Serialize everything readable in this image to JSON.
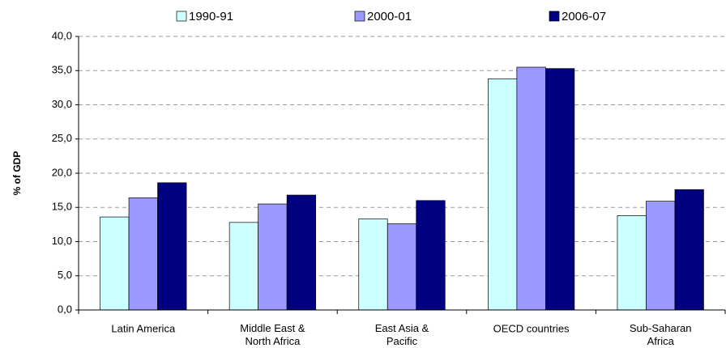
{
  "chart_data": {
    "type": "bar",
    "y_label": "% of GDP",
    "categories": [
      "Latin America",
      "Middle East & North Africa",
      "East Asia & Pacific",
      "OECD countries",
      "Sub-Saharan Africa"
    ],
    "series": [
      {
        "name": "1990-91",
        "color": "#ccffff",
        "values": [
          13.6,
          12.8,
          13.3,
          33.8,
          13.8
        ]
      },
      {
        "name": "2000-01",
        "color": "#9999ff",
        "values": [
          16.4,
          15.5,
          12.6,
          35.5,
          15.9
        ]
      },
      {
        "name": "2006-07",
        "color": "#000080",
        "values": [
          18.6,
          16.8,
          16.0,
          35.3,
          17.6
        ]
      }
    ],
    "ylim": [
      0,
      40
    ],
    "yticks": [
      {
        "value": 0,
        "label": "0,0"
      },
      {
        "value": 5,
        "label": "5,0"
      },
      {
        "value": 10,
        "label": "10,0"
      },
      {
        "value": 15,
        "label": "15,0"
      },
      {
        "value": 20,
        "label": "20,0"
      },
      {
        "value": 25,
        "label": "25,0"
      },
      {
        "value": 30,
        "label": "30,0"
      },
      {
        "value": 35,
        "label": "35,0"
      },
      {
        "value": 40,
        "label": "40,0"
      }
    ],
    "grid": true,
    "legend": "top"
  }
}
